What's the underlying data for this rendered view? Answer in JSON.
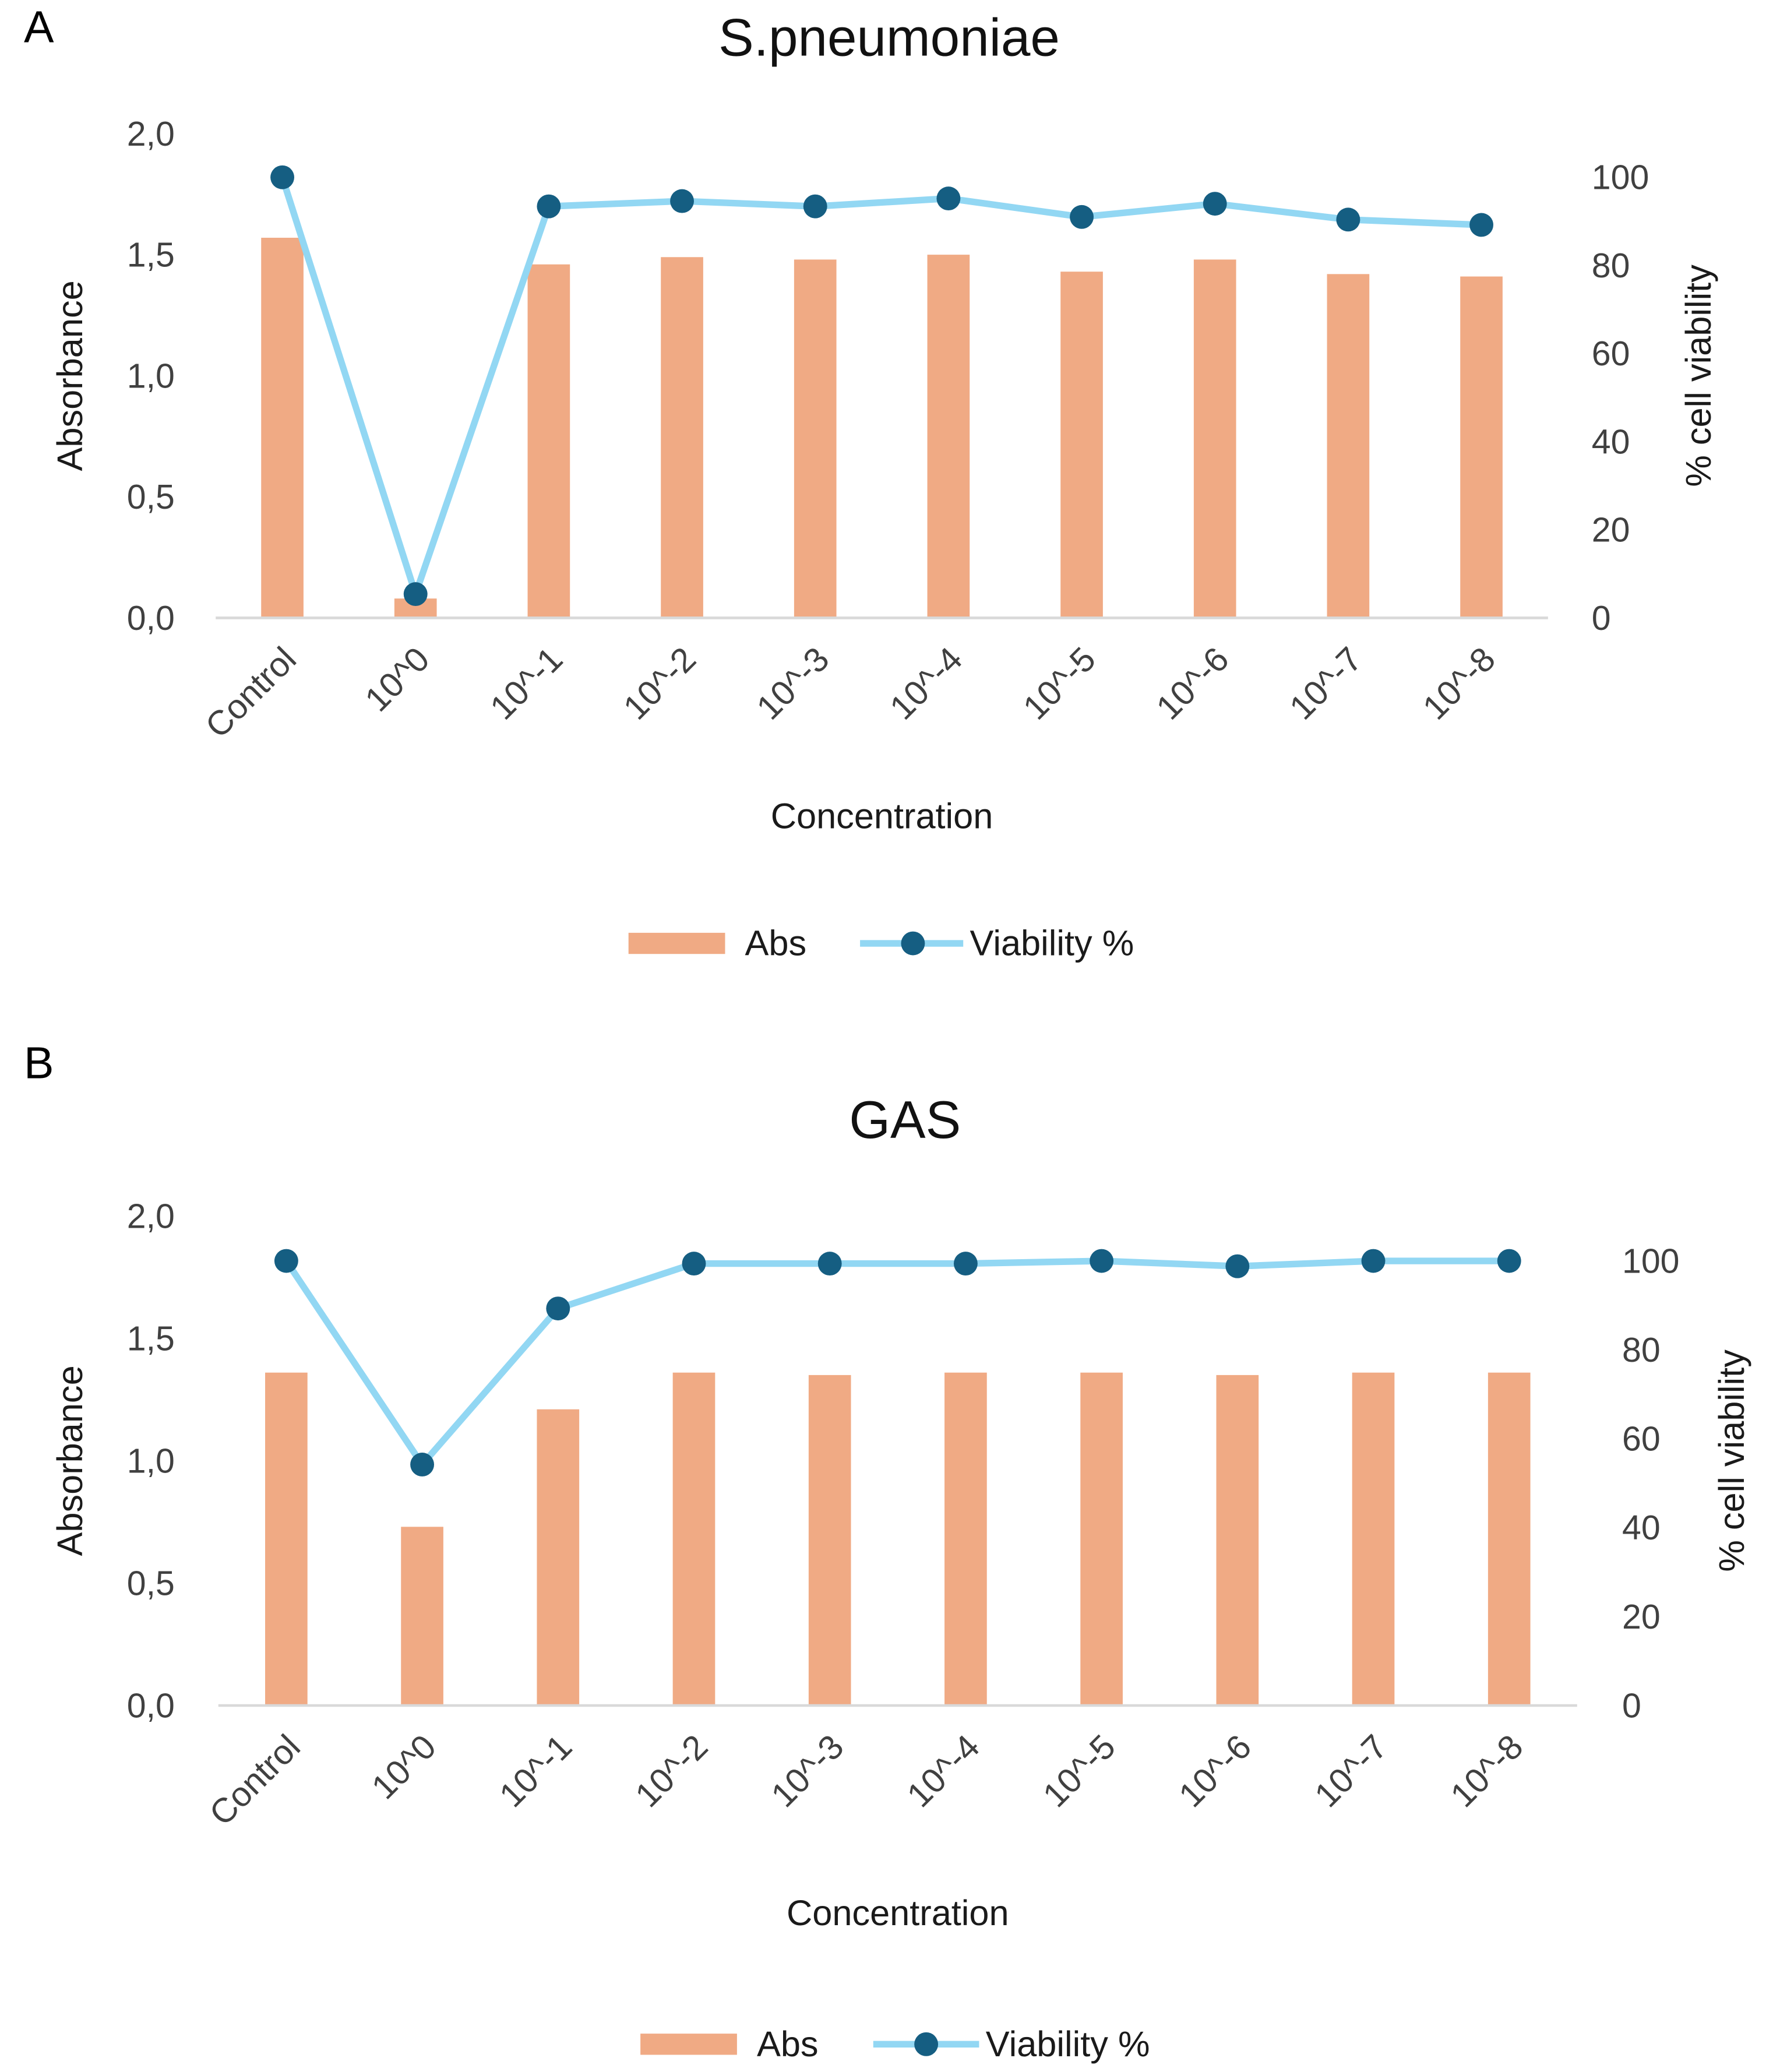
{
  "chart_data": [
    {
      "type": "bar+line",
      "panel_label": "A",
      "title": "S.pneumoniae",
      "xlabel": "Concentration",
      "ylabel": "Absorbance",
      "y2label": "% cell viability",
      "categories": [
        "Control",
        "10^0",
        "10^-1",
        "10^-2",
        "10^-3",
        "10^-4",
        "10^-5",
        "10^-6",
        "10^-7",
        "10^-8"
      ],
      "ylim": [
        0,
        2.0
      ],
      "y_ticks": [
        "0,0",
        "0,5",
        "1,0",
        "1,5",
        "2,0"
      ],
      "y2lim": [
        0,
        100
      ],
      "y2_ticks": [
        "0",
        "20",
        "40",
        "60",
        "80",
        "100"
      ],
      "series": [
        {
          "name": "Abs",
          "type": "bar",
          "axis": "left",
          "values": [
            1.57,
            0.08,
            1.46,
            1.49,
            1.48,
            1.5,
            1.43,
            1.48,
            1.42,
            1.41
          ]
        },
        {
          "name": "Viability %",
          "type": "line",
          "axis": "right",
          "values": [
            100,
            5.4,
            93.4,
            94.6,
            93.4,
            95.2,
            91.0,
            94.0,
            90.4,
            89.2
          ]
        }
      ],
      "legend_position": "bottom",
      "grid": false
    },
    {
      "type": "bar+line",
      "panel_label": "B",
      "title": "GAS",
      "xlabel": "Concentration",
      "ylabel": "Absorbance",
      "y2label": "% cell viability",
      "categories": [
        "Control",
        "10^0",
        "10^-1",
        "10^-2",
        "10^-3",
        "10^-4",
        "10^-5",
        "10^-6",
        "10^-7",
        "10^-8"
      ],
      "ylim": [
        0,
        2.0
      ],
      "y_ticks": [
        "0,0",
        "0,5",
        "1,0",
        "1,5",
        "2,0"
      ],
      "y2lim": [
        0,
        100
      ],
      "y2_ticks": [
        "0",
        "20",
        "40",
        "60",
        "80",
        "100"
      ],
      "series": [
        {
          "name": "Abs",
          "type": "bar",
          "axis": "left",
          "values": [
            1.36,
            0.73,
            1.21,
            1.36,
            1.35,
            1.36,
            1.36,
            1.35,
            1.36,
            1.36
          ]
        },
        {
          "name": "Viability %",
          "type": "line",
          "axis": "right",
          "values": [
            100,
            54.2,
            89.3,
            99.4,
            99.4,
            99.4,
            100,
            98.8,
            100,
            100
          ]
        }
      ],
      "legend_position": "bottom",
      "grid": false
    }
  ],
  "colors": {
    "bar": "#F0AA84",
    "line": "#92D7F3",
    "marker": "#155E82",
    "axis": "#D9D9D9"
  }
}
